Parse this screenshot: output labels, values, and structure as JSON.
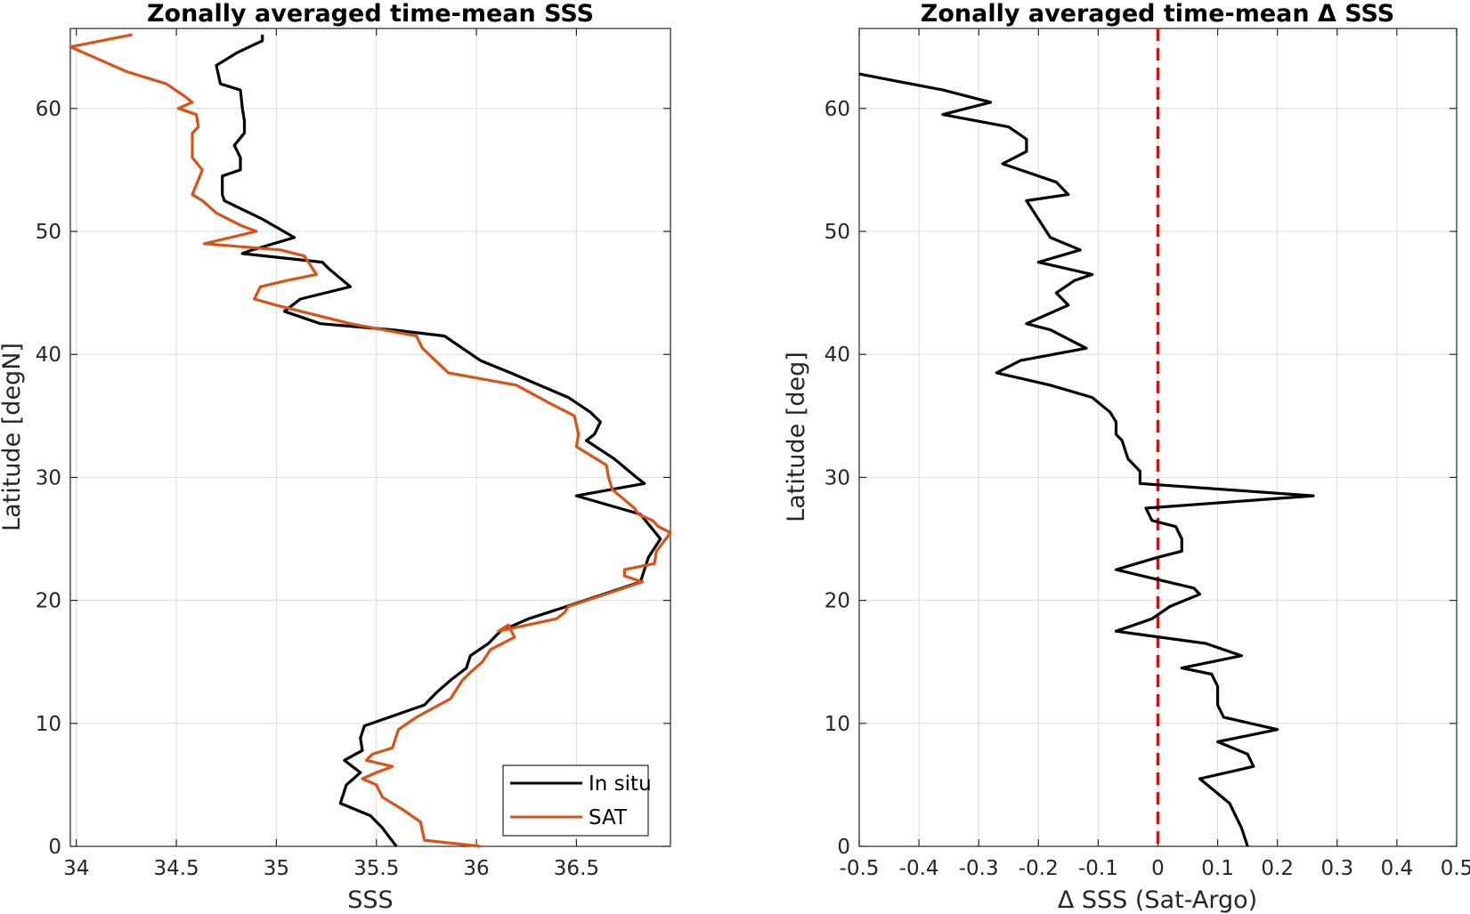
{
  "chart_data": [
    {
      "type": "line",
      "title": "Zonally averaged time-mean SSS",
      "xlabel": "SSS",
      "ylabel": "Latitude [degN]",
      "xlim": [
        33.97,
        36.97
      ],
      "ylim": [
        0,
        66.5
      ],
      "xticks": [
        "34",
        "34.5",
        "35",
        "35.5",
        "36",
        "36.5"
      ],
      "yticks": [
        "0",
        "10",
        "20",
        "30",
        "40",
        "50",
        "60"
      ],
      "grid": true,
      "legend_position": "bottom-right",
      "series": [
        {
          "name": "In situ",
          "color": "#000000",
          "points": [
            [
              35.6,
              0
            ],
            [
              35.53,
              1.5
            ],
            [
              35.47,
              2.5
            ],
            [
              35.32,
              3.5
            ],
            [
              35.35,
              5
            ],
            [
              35.42,
              6
            ],
            [
              35.34,
              7
            ],
            [
              35.43,
              7.8
            ],
            [
              35.42,
              8.8
            ],
            [
              35.44,
              9.8
            ],
            [
              35.74,
              11.5
            ],
            [
              35.8,
              12.5
            ],
            [
              35.87,
              13.5
            ],
            [
              35.95,
              14.5
            ],
            [
              35.97,
              15.5
            ],
            [
              36.06,
              16.5
            ],
            [
              36.12,
              17.5
            ],
            [
              36.26,
              18.5
            ],
            [
              36.45,
              19.5
            ],
            [
              36.82,
              21.5
            ],
            [
              36.84,
              22.5
            ],
            [
              36.86,
              23.5
            ],
            [
              36.92,
              25
            ],
            [
              36.87,
              26
            ],
            [
              36.82,
              27
            ],
            [
              36.5,
              28.5
            ],
            [
              36.84,
              29.5
            ],
            [
              36.8,
              30
            ],
            [
              36.69,
              31.5
            ],
            [
              36.55,
              33
            ],
            [
              36.59,
              33.5
            ],
            [
              36.62,
              34.5
            ],
            [
              36.57,
              35.3
            ],
            [
              36.46,
              36.5
            ],
            [
              36.17,
              38.5
            ],
            [
              36.02,
              39.5
            ],
            [
              35.84,
              41.5
            ],
            [
              35.58,
              42
            ],
            [
              35.22,
              42.5
            ],
            [
              35.04,
              43.5
            ],
            [
              35.12,
              44.5
            ],
            [
              35.37,
              45.5
            ],
            [
              35.26,
              47
            ],
            [
              35.23,
              47.5
            ],
            [
              34.83,
              48.2
            ],
            [
              34.88,
              48.5
            ],
            [
              35.09,
              49.5
            ],
            [
              34.93,
              51
            ],
            [
              34.74,
              52.5
            ],
            [
              34.73,
              53
            ],
            [
              34.73,
              54.5
            ],
            [
              34.82,
              55
            ],
            [
              34.82,
              56
            ],
            [
              34.79,
              57
            ],
            [
              34.84,
              58
            ],
            [
              34.84,
              59
            ],
            [
              34.83,
              60
            ],
            [
              34.82,
              61.5
            ],
            [
              34.72,
              62
            ],
            [
              34.7,
              63.5
            ],
            [
              34.8,
              64.5
            ],
            [
              34.93,
              65.5
            ],
            [
              34.93,
              66
            ]
          ]
        },
        {
          "name": "SAT",
          "color": "#d95319",
          "points": [
            [
              36.02,
              0
            ],
            [
              35.74,
              0.5
            ],
            [
              35.72,
              2
            ],
            [
              35.63,
              3
            ],
            [
              35.53,
              4
            ],
            [
              35.5,
              5
            ],
            [
              35.43,
              5.5
            ],
            [
              35.5,
              6
            ],
            [
              35.58,
              6.5
            ],
            [
              35.45,
              7
            ],
            [
              35.48,
              7.5
            ],
            [
              35.58,
              8
            ],
            [
              35.61,
              9.5
            ],
            [
              35.7,
              10.5
            ],
            [
              35.87,
              12
            ],
            [
              35.93,
              13.5
            ],
            [
              35.96,
              14
            ],
            [
              36.03,
              15
            ],
            [
              36.07,
              16
            ],
            [
              36.19,
              17
            ],
            [
              36.16,
              18
            ],
            [
              36.11,
              17.5
            ],
            [
              36.4,
              18.5
            ],
            [
              36.44,
              19
            ],
            [
              36.46,
              19.5
            ],
            [
              36.83,
              21.5
            ],
            [
              36.74,
              22
            ],
            [
              36.74,
              22.5
            ],
            [
              36.89,
              23
            ],
            [
              36.9,
              24
            ],
            [
              36.97,
              25.5
            ],
            [
              36.91,
              26
            ],
            [
              36.88,
              26.5
            ],
            [
              36.81,
              27
            ],
            [
              36.79,
              27.5
            ],
            [
              36.68,
              29
            ],
            [
              36.66,
              30
            ],
            [
              36.65,
              31
            ],
            [
              36.5,
              32.5
            ],
            [
              36.51,
              33.5
            ],
            [
              36.49,
              35
            ],
            [
              36.37,
              36
            ],
            [
              36.2,
              37.5
            ],
            [
              35.86,
              38.5
            ],
            [
              35.73,
              40.5
            ],
            [
              35.7,
              41.5
            ],
            [
              35.37,
              42.5
            ],
            [
              35.0,
              44
            ],
            [
              34.89,
              44.5
            ],
            [
              34.92,
              45.5
            ],
            [
              35.05,
              46
            ],
            [
              35.2,
              46.5
            ],
            [
              35.14,
              48
            ],
            [
              35.02,
              48.5
            ],
            [
              34.64,
              49
            ],
            [
              34.9,
              50
            ],
            [
              34.82,
              50.5
            ],
            [
              34.7,
              51.5
            ],
            [
              34.63,
              52.5
            ],
            [
              34.58,
              53
            ],
            [
              34.63,
              55
            ],
            [
              34.58,
              56
            ],
            [
              34.58,
              58
            ],
            [
              34.61,
              58.5
            ],
            [
              34.6,
              59.5
            ],
            [
              34.51,
              60
            ],
            [
              34.58,
              60.5
            ],
            [
              34.54,
              61
            ],
            [
              34.45,
              62
            ],
            [
              34.25,
              63
            ],
            [
              34.11,
              64
            ],
            [
              33.97,
              65
            ],
            [
              34.28,
              66
            ]
          ]
        }
      ]
    },
    {
      "type": "line",
      "title": "Zonally averaged time-mean Δ SSS",
      "xlabel": "Δ SSS (Sat-Argo)",
      "ylabel": "Latitude [deg]",
      "xlim": [
        -0.5,
        0.5
      ],
      "ylim": [
        0,
        66.5
      ],
      "xticks": [
        "-0.5",
        "-0.4",
        "-0.3",
        "-0.2",
        "-0.1",
        "0",
        "0.1",
        "0.2",
        "0.3",
        "0.4",
        "0.5"
      ],
      "yticks": [
        "0",
        "10",
        "20",
        "30",
        "40",
        "50",
        "60"
      ],
      "grid": true,
      "reference_line": {
        "x": 0,
        "color": "#ff0000",
        "style": "dashed"
      },
      "series": [
        {
          "color": "#000000",
          "points": [
            [
              0.15,
              0
            ],
            [
              0.14,
              1.5
            ],
            [
              0.13,
              2.5
            ],
            [
              0.12,
              3.5
            ],
            [
              0.07,
              5.5
            ],
            [
              0.16,
              6.5
            ],
            [
              0.15,
              7.5
            ],
            [
              0.1,
              8.5
            ],
            [
              0.2,
              9.5
            ],
            [
              0.11,
              10.5
            ],
            [
              0.1,
              11.5
            ],
            [
              0.1,
              13
            ],
            [
              0.09,
              14
            ],
            [
              0.04,
              14.5
            ],
            [
              0.14,
              15.5
            ],
            [
              0.08,
              16.5
            ],
            [
              -0.07,
              17.5
            ],
            [
              -0.01,
              18.5
            ],
            [
              0.02,
              19.5
            ],
            [
              0.07,
              20.5
            ],
            [
              0.06,
              21
            ],
            [
              -0.07,
              22.5
            ],
            [
              0.0,
              23.5
            ],
            [
              0.04,
              24
            ],
            [
              0.04,
              25
            ],
            [
              0.03,
              26
            ],
            [
              -0.01,
              26.5
            ],
            [
              -0.02,
              27.5
            ],
            [
              0.26,
              28.5
            ],
            [
              -0.03,
              29.5
            ],
            [
              -0.03,
              30.5
            ],
            [
              -0.05,
              31.5
            ],
            [
              -0.06,
              33
            ],
            [
              -0.07,
              33.5
            ],
            [
              -0.07,
              34.5
            ],
            [
              -0.08,
              35.3
            ],
            [
              -0.11,
              36.5
            ],
            [
              -0.18,
              37.5
            ],
            [
              -0.27,
              38.5
            ],
            [
              -0.23,
              39.5
            ],
            [
              -0.12,
              40.5
            ],
            [
              -0.18,
              42
            ],
            [
              -0.22,
              42.5
            ],
            [
              -0.15,
              44
            ],
            [
              -0.17,
              45
            ],
            [
              -0.14,
              46
            ],
            [
              -0.11,
              46.5
            ],
            [
              -0.2,
              47.5
            ],
            [
              -0.13,
              48.5
            ],
            [
              -0.18,
              49.5
            ],
            [
              -0.2,
              51
            ],
            [
              -0.22,
              52.5
            ],
            [
              -0.15,
              53
            ],
            [
              -0.17,
              54
            ],
            [
              -0.26,
              55.5
            ],
            [
              -0.22,
              56.5
            ],
            [
              -0.22,
              57.5
            ],
            [
              -0.25,
              58.5
            ],
            [
              -0.36,
              59.5
            ],
            [
              -0.28,
              60.5
            ],
            [
              -0.36,
              61.5
            ],
            [
              -0.5,
              62.8
            ]
          ]
        }
      ]
    }
  ],
  "legend": {
    "entries": [
      {
        "label": "In situ",
        "color": "#000000"
      },
      {
        "label": "SAT",
        "color": "#d95319"
      }
    ]
  }
}
